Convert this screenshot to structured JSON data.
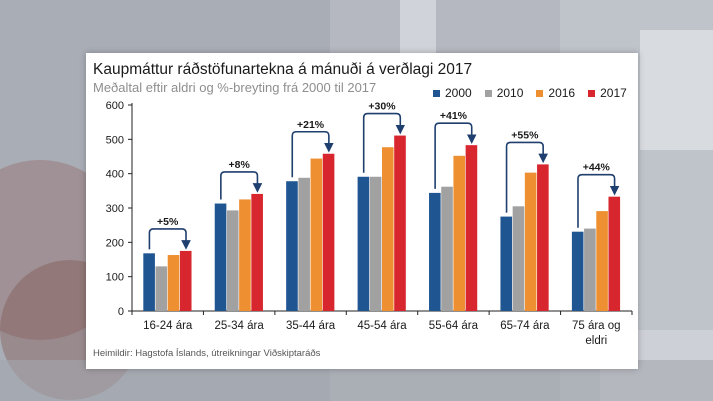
{
  "chart_data": {
    "type": "bar",
    "title": "Kaupmáttur ráðstöfunartekna á mánuði á verðlagi 2017",
    "subtitle": "Meðaltal eftir aldri og %-breyting frá 2000 til 2017",
    "source": "Heimildir: Hagstofa Íslands, útreikningar Viðskiptaráðs",
    "categories": [
      "16-24 ára",
      "25-34 ára",
      "35-44 ára",
      "45-54 ára",
      "55-64 ára",
      "65-74 ára",
      "75 ára og eldri"
    ],
    "category_lines": [
      [
        "16-24 ára"
      ],
      [
        "25-34 ára"
      ],
      [
        "35-44 ára"
      ],
      [
        "45-54 ára"
      ],
      [
        "55-64 ára"
      ],
      [
        "65-74 ára"
      ],
      [
        "75 ára og",
        "eldri"
      ]
    ],
    "series": [
      {
        "name": "2000",
        "color": "#1f5591",
        "values": [
          168,
          313,
          378,
          391,
          344,
          275,
          231
        ]
      },
      {
        "name": "2010",
        "color": "#a1a1a1",
        "values": [
          130,
          293,
          388,
          391,
          362,
          305,
          240
        ]
      },
      {
        "name": "2016",
        "color": "#ee8f31",
        "values": [
          163,
          325,
          444,
          477,
          452,
          403,
          291
        ]
      },
      {
        "name": "2017",
        "color": "#d7262d",
        "values": [
          175,
          341,
          458,
          511,
          483,
          427,
          333
        ]
      }
    ],
    "change_labels": [
      "+5%",
      "+8%",
      "+21%",
      "+30%",
      "+41%",
      "+55%",
      "+44%"
    ],
    "ylim": [
      0,
      600
    ],
    "yticks": [
      0,
      100,
      200,
      300,
      400,
      500,
      600
    ],
    "xlabel": "",
    "ylabel": "",
    "legend_position": "top-right",
    "grid": false
  }
}
